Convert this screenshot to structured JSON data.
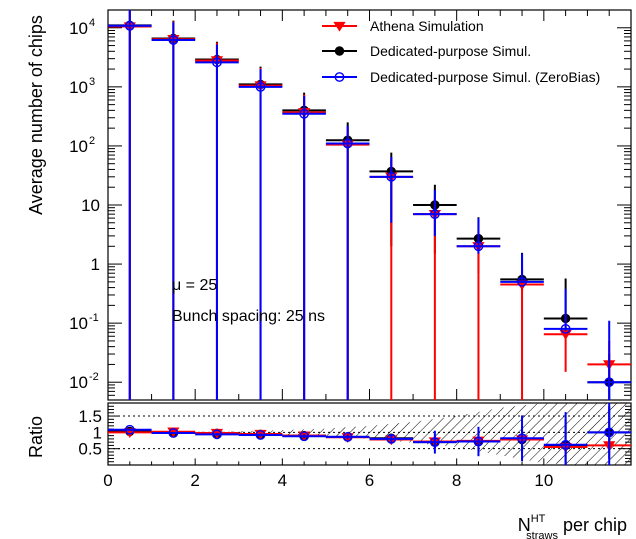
{
  "colors": {
    "athena": "#ff0000",
    "dedicated": "#000000",
    "zerobias": "#0000ff",
    "hatch": "#000000"
  },
  "texts": {
    "ylabel_top": "Average number of chips",
    "ylabel_bottom": "Ratio",
    "xlabel_main": "N",
    "xlabel_sup": "HT",
    "xlabel_sub": "straws",
    "xlabel_tail": " per chip",
    "mu_label": "μ = 25",
    "bunch_label": "Bunch spacing: 25 ns"
  },
  "chart_data": [
    {
      "type": "scatter",
      "title": "",
      "ylabel": "Average number of chips",
      "xlim": [
        0,
        12
      ],
      "ylim": [
        0.005,
        20000
      ],
      "y_scale": "log",
      "x_ticks": [
        "0",
        "2",
        "4",
        "6",
        "8",
        "10"
      ],
      "y_ticks": [
        {
          "v": 10000,
          "base": "10",
          "exp": "4"
        },
        {
          "v": 1000,
          "base": "10",
          "exp": "3"
        },
        {
          "v": 100,
          "base": "10",
          "exp": "2"
        },
        {
          "v": 10,
          "base": "10",
          "exp": ""
        },
        {
          "v": 1,
          "base": "1",
          "exp": ""
        },
        {
          "v": 0.1,
          "base": "10",
          "exp": "-1"
        },
        {
          "v": 0.01,
          "base": "10",
          "exp": "-2"
        }
      ],
      "legend_position": "top-right",
      "series": [
        {
          "name": "Athena Simulation",
          "marker": "triangle-down",
          "color_key": "athena",
          "x": [
            0.5,
            1.5,
            2.5,
            3.5,
            4.5,
            5.5,
            6.5,
            7.5,
            8.5,
            9.5,
            10.5,
            11.5
          ],
          "y": [
            10500,
            6400,
            2800,
            1050,
            370,
            105,
            30,
            7,
            2,
            0.45,
            0.065,
            0.02
          ],
          "yerr_low": [
            10500,
            6400,
            2800,
            1050,
            370,
            105,
            30,
            7,
            2,
            0.45,
            0.05,
            0.01
          ],
          "yerr_high": [
            10500,
            6400,
            2800,
            1050,
            370,
            105,
            30,
            7,
            2,
            0.45,
            0.08,
            0.03
          ]
        },
        {
          "name": "Dedicated-purpose Simul.",
          "marker": "circle-filled",
          "color_key": "dedicated",
          "x": [
            0.5,
            1.5,
            2.5,
            3.5,
            4.5,
            5.5,
            6.5,
            7.5,
            8.5,
            9.5,
            10.5,
            11.5
          ],
          "y": [
            11000,
            6600,
            2900,
            1100,
            400,
            125,
            37,
            10,
            2.7,
            0.55,
            0.12,
            0.01
          ],
          "yerr_low": [
            11000,
            6600,
            2900,
            1100,
            400,
            125,
            35,
            8.5,
            2.0,
            0.2,
            0.005,
            0.005
          ],
          "yerr_high": [
            11000,
            6600,
            2900,
            1100,
            400,
            125,
            40,
            12,
            3.5,
            1.0,
            0.45,
            0.02
          ]
        },
        {
          "name": "Dedicated-purpose Simul. (ZeroBias)",
          "marker": "circle-open",
          "color_key": "zerobias",
          "x": [
            0.5,
            1.5,
            2.5,
            3.5,
            4.5,
            5.5,
            6.5,
            7.5,
            8.5,
            9.5,
            10.5,
            11.5
          ],
          "y": [
            10800,
            6200,
            2600,
            1000,
            350,
            110,
            30,
            7,
            2,
            0.5,
            0.08,
            0.01
          ],
          "yerr_low": [
            10800,
            6200,
            2600,
            1000,
            350,
            110,
            25,
            4,
            0.5,
            0.005,
            0.005,
            0.005
          ],
          "yerr_high": [
            10800,
            6200,
            2600,
            1000,
            350,
            110,
            35,
            11,
            4,
            1.0,
            0.3,
            0.1
          ]
        }
      ]
    },
    {
      "type": "scatter",
      "title": "",
      "ylabel": "Ratio",
      "xlabel": "N^HT_straws per chip",
      "xlim": [
        0,
        12
      ],
      "ylim": [
        0,
        1.9
      ],
      "x_ticks": [
        "0",
        "2",
        "4",
        "6",
        "8",
        "10"
      ],
      "y_ticks": [
        "0.5",
        "1",
        "1.5"
      ],
      "reference_lines": [
        0.5,
        1,
        1.5
      ],
      "hatched_band": {
        "x": [
          0,
          1,
          2,
          3,
          4,
          5,
          6,
          7,
          8,
          9,
          10,
          11,
          12
        ],
        "lower": [
          1,
          1,
          1,
          1,
          1,
          1,
          1,
          1,
          1,
          1,
          1,
          1,
          1
        ],
        "upper": [
          1,
          1,
          1,
          1,
          1,
          1,
          1,
          1,
          1,
          1,
          1,
          1,
          1
        ],
        "band_low": [
          0.99,
          0.99,
          0.98,
          0.96,
          0.93,
          0.88,
          0.8,
          0.68,
          0.55,
          0.3,
          0.05,
          0.0,
          0.0
        ],
        "band_high": [
          1.01,
          1.01,
          1.02,
          1.04,
          1.07,
          1.12,
          1.2,
          1.32,
          1.5,
          1.75,
          1.9,
          1.9,
          1.9
        ]
      },
      "series": [
        {
          "name": "Athena Simulation",
          "marker": "triangle-down",
          "color_key": "athena",
          "x": [
            0.5,
            1.5,
            2.5,
            3.5,
            4.5,
            5.5,
            6.5,
            7.5,
            8.5,
            9.5,
            10.5,
            11.5
          ],
          "y": [
            1.0,
            1.02,
            0.98,
            0.95,
            0.9,
            0.85,
            0.78,
            0.72,
            0.74,
            0.78,
            0.55,
            0.6
          ],
          "yerr": [
            0.02,
            0.03,
            0.03,
            0.03,
            0.04,
            0.05,
            0.05,
            0.07,
            0.1,
            0.15,
            0.08,
            0.1
          ]
        },
        {
          "name": "Dedicated-purpose Simul.",
          "marker": "circle-filled",
          "color_key": "dedicated",
          "x": [
            0.5,
            1.5,
            2.5,
            3.5,
            4.5,
            5.5,
            6.5,
            7.5,
            8.5,
            9.5,
            10.5,
            11.5
          ],
          "y": [
            1.03,
            1.0,
            0.97,
            0.94,
            0.9,
            0.86,
            0.82,
            0.7,
            0.72,
            0.78,
            0.6,
            1.0
          ],
          "yerr": [
            0.02,
            0.03,
            0.03,
            0.04,
            0.05,
            0.06,
            0.08,
            0.18,
            0.3,
            0.4,
            0.8,
            0.8
          ]
        },
        {
          "name": "Dedicated-purpose Simul. (ZeroBias)",
          "marker": "circle-open",
          "color_key": "zerobias",
          "x": [
            0.5,
            1.5,
            2.5,
            3.5,
            4.5,
            5.5,
            6.5,
            7.5,
            8.5,
            9.5,
            10.5,
            11.5
          ],
          "y": [
            1.08,
            0.98,
            0.94,
            0.92,
            0.88,
            0.86,
            0.8,
            0.7,
            0.72,
            0.82,
            0.62,
            1.0
          ],
          "yerr": [
            0.03,
            0.03,
            0.04,
            0.05,
            0.06,
            0.07,
            0.12,
            0.35,
            0.45,
            0.7,
            1.0,
            1.0
          ]
        }
      ]
    }
  ]
}
